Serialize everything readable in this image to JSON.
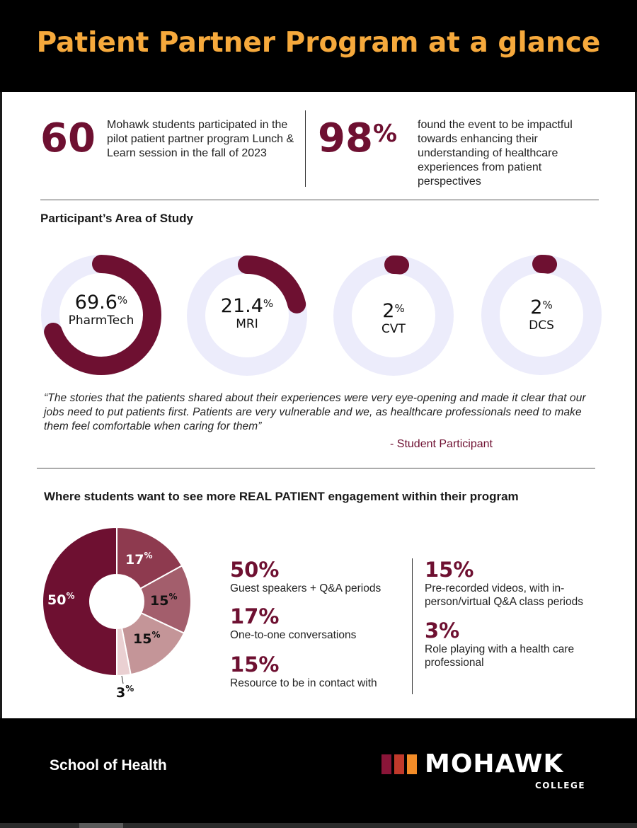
{
  "title": "Patient Partner Program at a glance",
  "stats": [
    {
      "value": "60",
      "unit": "",
      "text": "Mohawk students participated in the pilot patient partner program Lunch & Learn session in the fall of 2023"
    },
    {
      "value": "98",
      "unit": "%",
      "text": "found the event to be impactful towards enhancing their understanding of healthcare experiences from patient perspectives"
    }
  ],
  "area_title": "Participant’s Area of Study",
  "quote": "“The stories that the patients shared about their experiences were very eye-opening and made it clear that our jobs need to put patients first. Patients are very vulnerable and we, as healthcare professionals need to make them feel comfortable when caring for them”",
  "attribution": "- Student Participant",
  "engagement_title": "Where students want to see more REAL PATIENT engagement within their program",
  "footer": {
    "school": "School of Health",
    "logo_word": "MOHAWK",
    "logo_sub": "COLLEGE"
  },
  "colors": {
    "accent": "#6e1031",
    "title": "#f6a93c",
    "ring_track": "#ececfb"
  },
  "chart_data": [
    {
      "type": "donut",
      "unit": "%",
      "categories": [
        "PharmTech",
        "MRI",
        "CVT",
        "DCS"
      ],
      "values": [
        69.6,
        21.4,
        2,
        2
      ],
      "value_labels": [
        "69.6",
        "21.4",
        "2",
        "2"
      ],
      "title": "Participant’s Area of Study"
    },
    {
      "type": "pie",
      "unit": "%",
      "categories": [
        "Guest speakers + Q&A periods",
        "One-to-one conversations",
        "Pre-recorded videos, with in-person/virtual Q&A class periods",
        "Resource to be in contact with",
        "Role playing with a health care professional"
      ],
      "values": [
        50,
        17,
        15,
        15,
        3
      ],
      "title": "Where students want to see more REAL PATIENT engagement within their program"
    }
  ],
  "legend": {
    "left": [
      {
        "value": "50%",
        "text": "Guest speakers + Q&A periods"
      },
      {
        "value": "17%",
        "text": "One-to-one conversations"
      },
      {
        "value": "15%",
        "text": "Resource to be in contact with"
      }
    ],
    "right": [
      {
        "value": "15%",
        "text": "Pre-recorded videos, with in-person/virtual Q&A class periods"
      },
      {
        "value": "3%",
        "text": "Role playing with a health care professional"
      }
    ]
  }
}
